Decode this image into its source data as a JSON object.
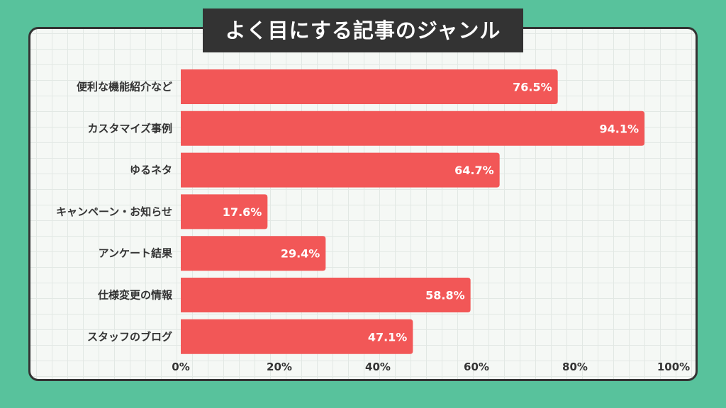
{
  "colors": {
    "background": "#58C29C",
    "card": "#F5F8F5",
    "bar": "#F25757",
    "title_bg": "#333333",
    "text": "#333333"
  },
  "chart_data": {
    "type": "bar",
    "orientation": "horizontal",
    "title": "よく目にする記事のジャンル",
    "xlabel": "",
    "ylabel": "",
    "xlim": [
      0,
      100
    ],
    "grid": true,
    "categories": [
      "便利な機能紹介など",
      "カスタマイズ事例",
      "ゆるネタ",
      "キャンペーン・お知らせ",
      "アンケート結果",
      "仕様変更の情報",
      "スタッフのブログ"
    ],
    "values": [
      76.5,
      94.1,
      64.7,
      17.6,
      29.4,
      58.8,
      47.1
    ],
    "value_labels": [
      "76.5%",
      "94.1%",
      "64.7%",
      "17.6%",
      "29.4%",
      "58.8%",
      "47.1%"
    ],
    "x_ticks": [
      0,
      20,
      40,
      60,
      80,
      100
    ],
    "x_tick_labels": [
      "0%",
      "20%",
      "40%",
      "60%",
      "80%",
      "100%"
    ]
  }
}
